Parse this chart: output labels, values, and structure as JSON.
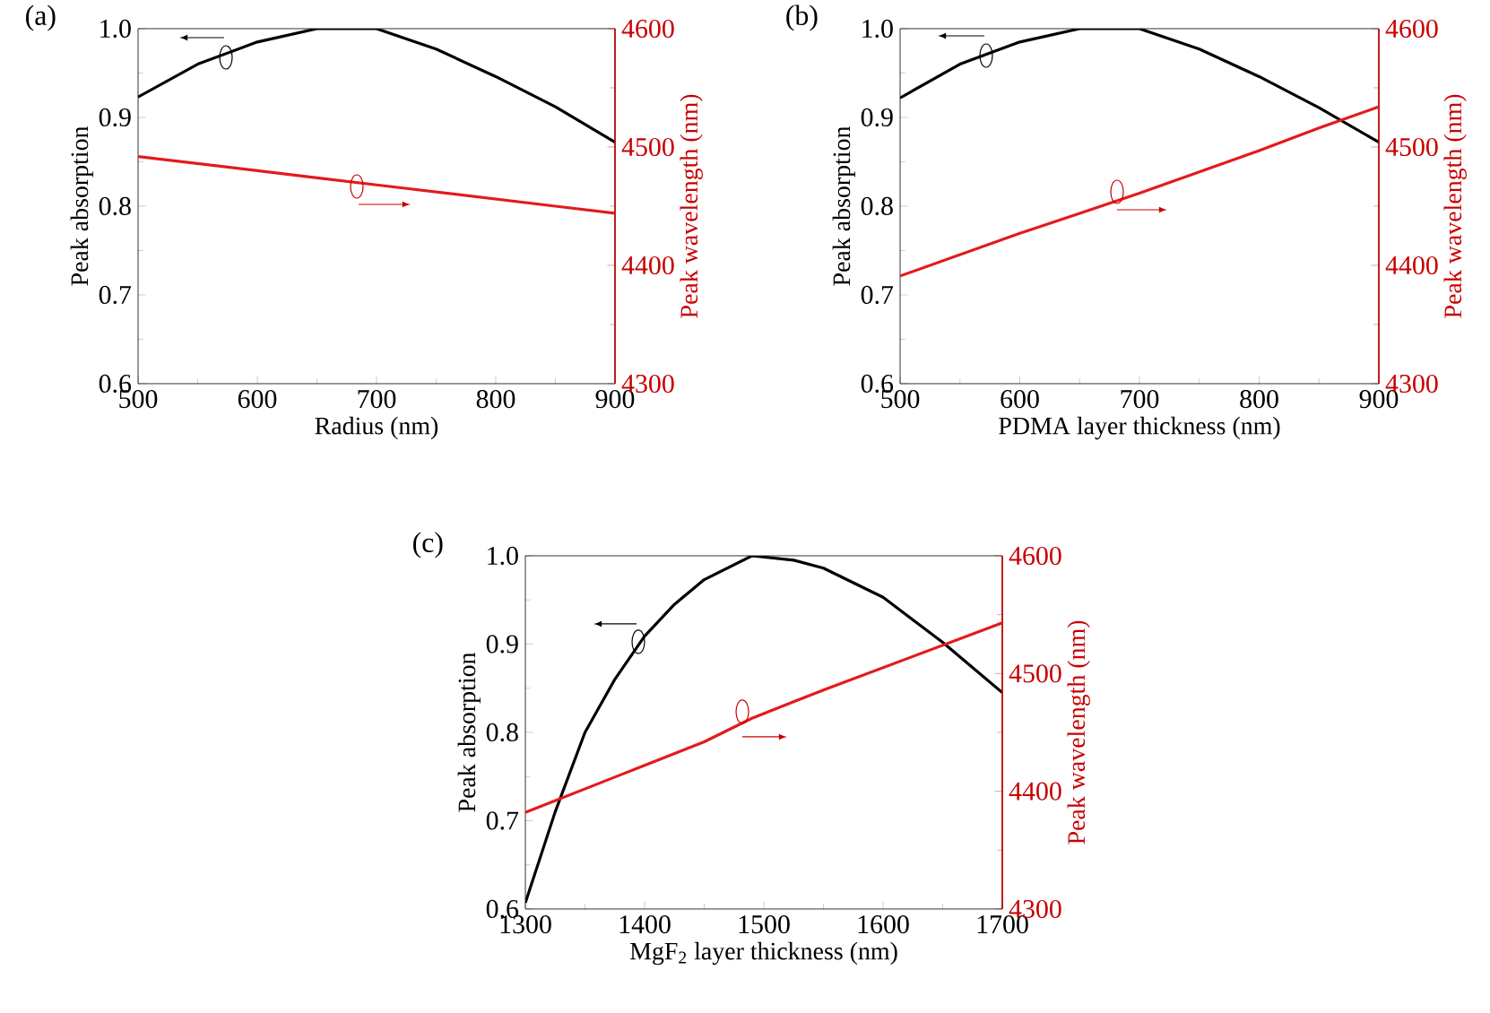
{
  "chart_data": [
    {
      "type": "line",
      "title": "(a)",
      "xlabel": "Radius (nm)",
      "ylabel": "Peak absorption",
      "y2label": "Peak wavelength (nm)",
      "x": [
        500,
        550,
        600,
        650,
        700,
        750,
        800,
        850,
        900
      ],
      "xlim": [
        500,
        900
      ],
      "xticks": [
        500,
        600,
        700,
        800,
        900
      ],
      "ylim": [
        0.6,
        1.0
      ],
      "yticks": [
        {
          "value": 0.6,
          "label": "0.6"
        },
        {
          "value": 0.7,
          "label": "0.7"
        },
        {
          "value": 0.8,
          "label": "0.8"
        },
        {
          "value": 0.9,
          "label": "0.9"
        },
        {
          "value": 1.0,
          "label": "1.0"
        }
      ],
      "y2lim": [
        4300,
        4600
      ],
      "y2ticks": [
        4300,
        4400,
        4500,
        4600
      ],
      "series": [
        {
          "color": "#000000",
          "values": [
            0.923,
            0.96,
            0.985,
            1.0,
            1.0,
            0.977,
            0.946,
            0.912,
            0.872
          ]
        },
        {
          "color": "#e31a1c",
          "axis": "y2",
          "values": [
            4492,
            4486,
            4480,
            4474,
            4468,
            4462,
            4456,
            4450,
            4444
          ]
        }
      ]
    },
    {
      "type": "line",
      "title": "(b)",
      "xlabel": "PDMA layer thickness (nm)",
      "ylabel": "Peak absorption",
      "y2label": "Peak wavelength (nm)",
      "x": [
        500,
        550,
        600,
        650,
        700,
        750,
        800,
        850,
        900
      ],
      "xlim": [
        500,
        900
      ],
      "xticks": [
        500,
        600,
        700,
        800,
        900
      ],
      "ylim": [
        0.6,
        1.0
      ],
      "yticks": [
        {
          "value": 0.6,
          "label": "0.6"
        },
        {
          "value": 0.7,
          "label": "0.7"
        },
        {
          "value": 0.8,
          "label": "0.8"
        },
        {
          "value": 0.9,
          "label": "0.9"
        },
        {
          "value": 1.0,
          "label": "1.0"
        }
      ],
      "y2lim": [
        4300,
        4600
      ],
      "y2ticks": [
        4300,
        4400,
        4500,
        4600
      ],
      "series": [
        {
          "color": "#000000",
          "values": [
            0.922,
            0.96,
            0.985,
            1.0,
            1.0,
            0.977,
            0.946,
            0.911,
            0.872
          ]
        },
        {
          "color": "#e31a1c",
          "axis": "y2",
          "values": [
            4391,
            4409,
            4427,
            4444,
            4461,
            4479,
            4497,
            4516,
            4534
          ]
        }
      ]
    },
    {
      "type": "line",
      "title": "(c)",
      "xlabel": "MgF$_{2}$ layer thickness (nm)",
      "ylabel": "Peak absorption",
      "y2label": "Peak wavelength (nm)",
      "x": [
        1300,
        1325,
        1350,
        1375,
        1400,
        1425,
        1450,
        1490,
        1525,
        1550,
        1600,
        1650,
        1700
      ],
      "xlim": [
        1300,
        1700
      ],
      "xticks": [
        1300,
        1400,
        1500,
        1600,
        1700
      ],
      "ylim": [
        0.6,
        1.0
      ],
      "yticks": [
        {
          "value": 0.6,
          "label": "0.6"
        },
        {
          "value": 0.7,
          "label": "0.7"
        },
        {
          "value": 0.8,
          "label": "0.8"
        },
        {
          "value": 0.9,
          "label": "0.9"
        },
        {
          "value": 1.0,
          "label": "1.0"
        }
      ],
      "y2lim": [
        4300,
        4600
      ],
      "y2ticks": [
        4300,
        4400,
        4500,
        4600
      ],
      "series": [
        {
          "color": "#000000",
          "values": [
            0.607,
            0.71,
            0.8,
            0.86,
            0.909,
            0.945,
            0.973,
            1.0,
            0.995,
            0.986,
            0.953,
            0.902,
            0.845
          ]
        },
        {
          "color": "#e31a1c",
          "axis": "y2",
          "values": [
            4382,
            4392,
            4402,
            4412,
            4422,
            4432,
            4442,
            4462,
            4476,
            4486,
            4505,
            4524,
            4543
          ]
        }
      ]
    }
  ]
}
